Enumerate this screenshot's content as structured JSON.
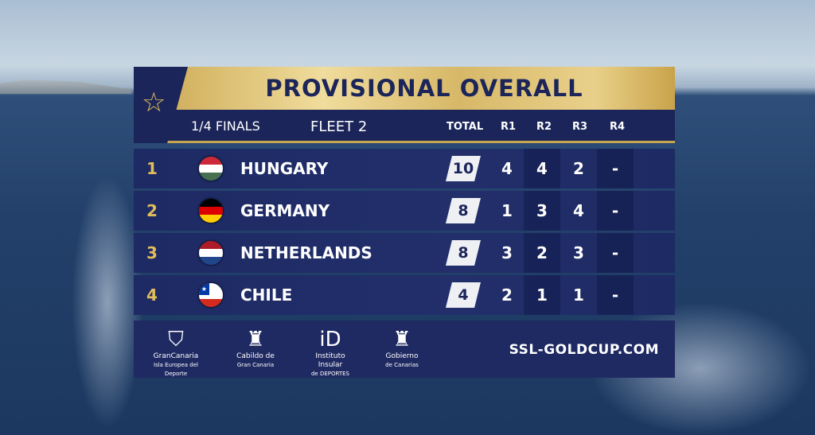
{
  "header": {
    "title": "PROVISIONAL OVERALL",
    "stage": "1/4 FINALS",
    "fleet": "FLEET 2"
  },
  "columns": {
    "total": "TOTAL",
    "r1": "R1",
    "r2": "R2",
    "r3": "R3",
    "r4": "R4"
  },
  "rows": [
    {
      "rank": "1",
      "country": "HUNGARY",
      "flag": [
        "#ce2939",
        "#ffffff",
        "#477050"
      ],
      "total": "10",
      "r1": "4",
      "r2": "4",
      "r3": "2",
      "r4": "-"
    },
    {
      "rank": "2",
      "country": "GERMANY",
      "flag": [
        "#000000",
        "#dd0000",
        "#ffce00"
      ],
      "total": "8",
      "r1": "1",
      "r2": "3",
      "r3": "4",
      "r4": "-"
    },
    {
      "rank": "3",
      "country": "NETHERLANDS",
      "flag": [
        "#ae1c28",
        "#ffffff",
        "#21468b"
      ],
      "total": "8",
      "r1": "3",
      "r2": "2",
      "r3": "3",
      "r4": "-"
    },
    {
      "rank": "4",
      "country": "CHILE",
      "flag": [
        "#ffffff",
        "#ffffff",
        "#d52b1e"
      ],
      "total": "4",
      "r1": "2",
      "r2": "1",
      "r3": "1",
      "r4": "-"
    }
  ],
  "footer": {
    "logos": [
      {
        "icon": "island-icon",
        "line1": "GranCanaria",
        "line2": "Isla Europea del Deporte"
      },
      {
        "icon": "coat-of-arms-icon",
        "line1": "Cabildo de",
        "line2": "Gran Canaria"
      },
      {
        "icon": "id-logo-icon",
        "line1": "Instituto Insular",
        "line2": "de DEPORTES"
      },
      {
        "icon": "coat-of-arms-icon",
        "line1": "Gobierno",
        "line2": "de Canarias"
      }
    ],
    "website": "SSL-GOLDCUP.COM"
  },
  "colors": {
    "navy": "#1b2559",
    "gold": "#c9a54e"
  }
}
